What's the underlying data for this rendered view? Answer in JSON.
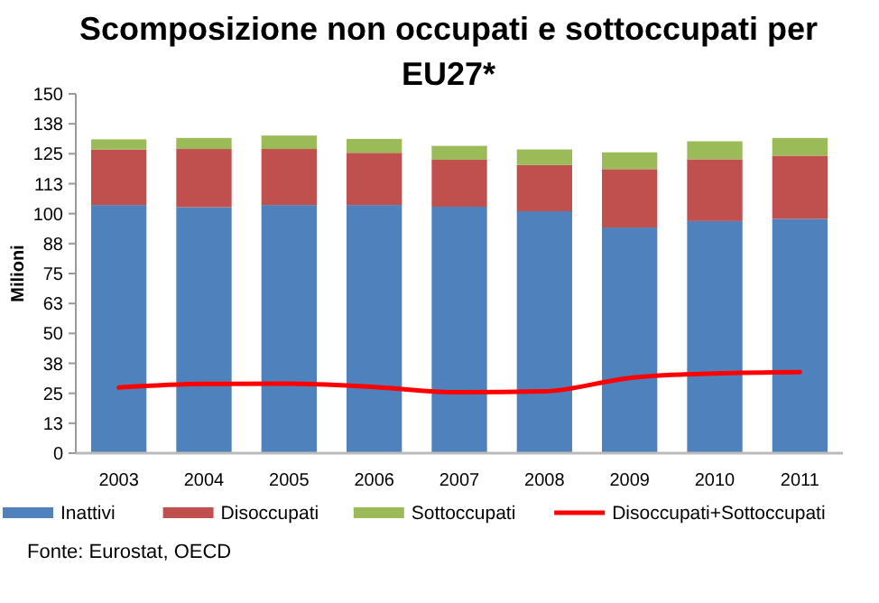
{
  "chart_data": {
    "type": "bar",
    "title": "Scomposizione non occupati e sottoccupati per EU27*",
    "ylabel": "Milioni",
    "categories": [
      "2003",
      "2004",
      "2005",
      "2006",
      "2007",
      "2008",
      "2009",
      "2010",
      "2011"
    ],
    "stacked": true,
    "series": [
      {
        "name": "Inattivi",
        "color": "#4f81bd",
        "values": [
          103.6,
          102.7,
          103.6,
          103.6,
          102.9,
          101,
          94.2,
          96.9,
          97.8
        ]
      },
      {
        "name": "Disoccupati",
        "color": "#c0504d",
        "values": [
          23.2,
          24.3,
          23.4,
          21.8,
          19.6,
          19.3,
          24.4,
          25.8,
          26.4
        ]
      },
      {
        "name": "Sottoccupati",
        "color": "#9bbb59",
        "values": [
          4.2,
          4.6,
          5.6,
          5.8,
          5.8,
          6.5,
          7,
          7.5,
          7.4
        ]
      },
      {
        "name": "Disoccupati+Sottoccupati",
        "type": "line",
        "color": "#ff0000",
        "values": [
          27.4,
          28.9,
          29,
          27.6,
          25.4,
          25.8,
          31.4,
          33.3,
          33.8
        ]
      }
    ],
    "ylim": [
      0,
      150
    ],
    "yticks": [
      0,
      {
        "value": 12.5,
        "label": "13"
      },
      25,
      {
        "value": 37.5,
        "label": "38"
      },
      50,
      {
        "value": 62.5,
        "label": "63"
      },
      75,
      {
        "value": 87.5,
        "label": "88"
      },
      100,
      {
        "value": 112.5,
        "label": "113"
      },
      125,
      {
        "value": 137.5,
        "label": "138"
      },
      150
    ],
    "grid": false,
    "legend": "bottom",
    "annotations": [
      "Fonte: Eurostat, OECD"
    ]
  }
}
